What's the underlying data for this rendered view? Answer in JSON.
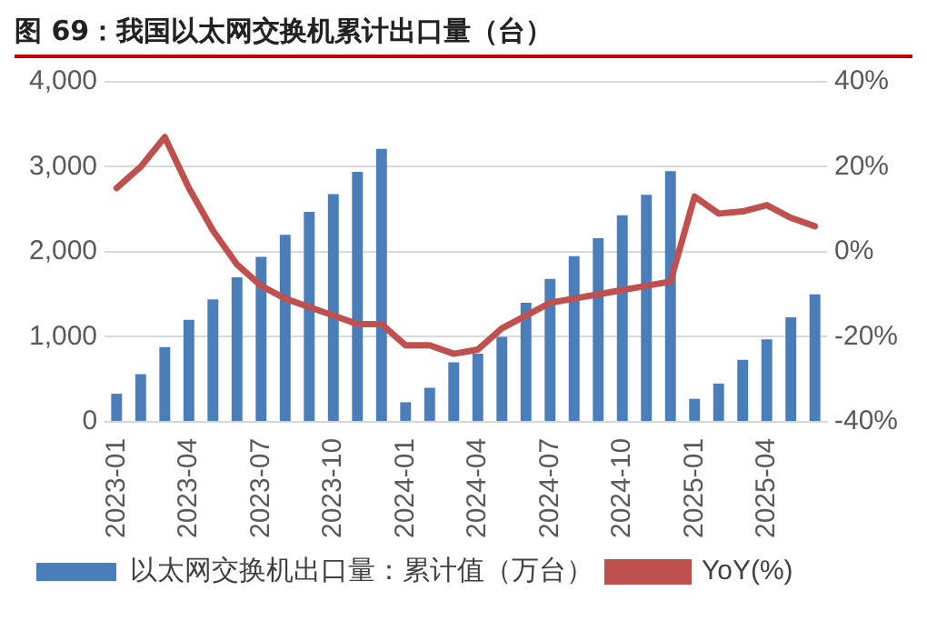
{
  "chart_data": {
    "type": "bar",
    "title": "图 69：我国以太网交换机累计出口量（台）",
    "categories": [
      "2023-01",
      null,
      null,
      "2023-04",
      null,
      null,
      "2023-07",
      null,
      null,
      "2023-10",
      null,
      null,
      "2024-01",
      null,
      null,
      "2024-04",
      null,
      null,
      "2024-07",
      null,
      null,
      "2024-10",
      null,
      null,
      "2025-01",
      null,
      null,
      "2025-04",
      null,
      null
    ],
    "series": [
      {
        "name": "以太网交换机出口量：累计值（万台）",
        "color": "#4a7ebb",
        "values": [
          330,
          560,
          880,
          1200,
          1440,
          1700,
          1940,
          2200,
          2470,
          2680,
          2940,
          3210,
          230,
          400,
          700,
          800,
          1000,
          1400,
          1680,
          1950,
          2160,
          2430,
          2670,
          2950,
          270,
          450,
          730,
          970,
          1230,
          1500
        ]
      },
      {
        "name": "YoY(%)",
        "type": "line",
        "axis": "y2",
        "color": "#c0504d",
        "values": [
          15,
          20,
          27,
          15,
          5,
          -3,
          -8,
          -11,
          -13,
          -15,
          -17,
          -17,
          -22,
          -22,
          -24,
          -23,
          -18,
          -15,
          -12,
          -11,
          -10,
          -9,
          -8,
          -7,
          13,
          9,
          9.5,
          11,
          8,
          6
        ]
      }
    ],
    "ylim": [
      0,
      4000
    ],
    "yticks": [
      {
        "value": 0,
        "label": "0"
      },
      {
        "value": 1000,
        "label": "1,000"
      },
      {
        "value": 2000,
        "label": "2,000"
      },
      {
        "value": 3000,
        "label": "3,000"
      },
      {
        "value": 4000,
        "label": "4,000"
      }
    ],
    "y2lim": [
      -40,
      40
    ],
    "y2ticks": [
      {
        "value": -40,
        "label": "-40%"
      },
      {
        "value": -20,
        "label": "-20%"
      },
      {
        "value": 0,
        "label": "0%"
      },
      {
        "value": 20,
        "label": "20%"
      },
      {
        "value": 40,
        "label": "40%"
      }
    ],
    "grid": "y",
    "legend": "bottom",
    "marker": "none",
    "line_style": "solid"
  }
}
